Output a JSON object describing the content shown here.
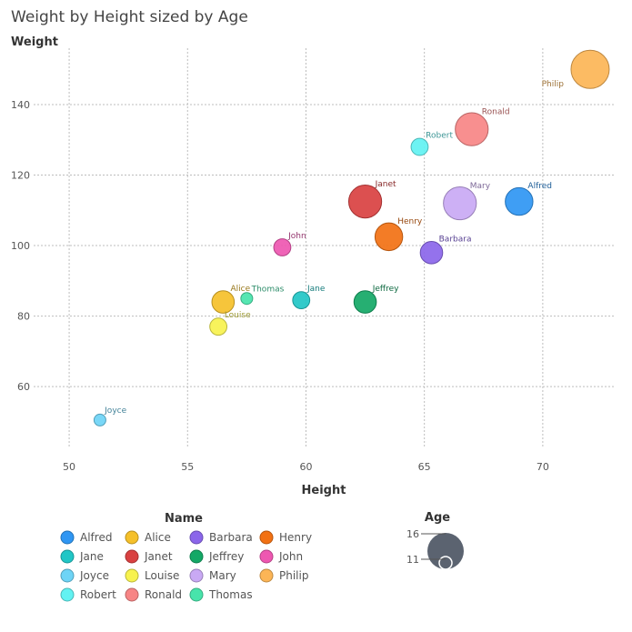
{
  "chart_data": {
    "type": "scatter",
    "title": "Weight by Height sized by Age",
    "xlabel": "Height",
    "ylabel": "Weight",
    "xlim": [
      48.5,
      73
    ],
    "ylim": [
      43,
      156
    ],
    "xticks": [
      50,
      55,
      60,
      65,
      70
    ],
    "yticks": [
      60,
      80,
      100,
      120,
      140
    ],
    "grid": true,
    "size_var": "Age",
    "legend_title": "Name",
    "size_legend": {
      "title": "Age",
      "values": [
        16,
        11
      ]
    },
    "series": [
      {
        "name": "Alfred",
        "color": "#2f96f3",
        "height": 69.0,
        "weight": 112.5,
        "age": 14
      },
      {
        "name": "Alice",
        "color": "#f5c02a",
        "height": 56.5,
        "weight": 84.0,
        "age": 13
      },
      {
        "name": "Barbara",
        "color": "#8b66ea",
        "height": 65.3,
        "weight": 98.0,
        "age": 13
      },
      {
        "name": "Henry",
        "color": "#f27113",
        "height": 63.5,
        "weight": 102.5,
        "age": 14
      },
      {
        "name": "Jane",
        "color": "#21c6c6",
        "height": 59.8,
        "weight": 84.5,
        "age": 12
      },
      {
        "name": "Janet",
        "color": "#d94141",
        "height": 62.5,
        "weight": 112.5,
        "age": 15
      },
      {
        "name": "Jeffrey",
        "color": "#14a866",
        "height": 62.5,
        "weight": 84.0,
        "age": 13
      },
      {
        "name": "John",
        "color": "#ee57b1",
        "height": 59.0,
        "weight": 99.5,
        "age": 12
      },
      {
        "name": "Joyce",
        "color": "#6ed4f6",
        "height": 51.3,
        "weight": 50.5,
        "age": 11
      },
      {
        "name": "Louise",
        "color": "#f7f24e",
        "height": 56.3,
        "weight": 77.0,
        "age": 12
      },
      {
        "name": "Mary",
        "color": "#c9a9f4",
        "height": 66.5,
        "weight": 112.0,
        "age": 15
      },
      {
        "name": "Philip",
        "color": "#fcb556",
        "height": 72.0,
        "weight": 150.0,
        "age": 16
      },
      {
        "name": "Robert",
        "color": "#62f2f2",
        "height": 64.8,
        "weight": 128.0,
        "age": 12
      },
      {
        "name": "Ronald",
        "color": "#f78585",
        "height": 67.0,
        "weight": 133.0,
        "age": 15
      },
      {
        "name": "Thomas",
        "color": "#48e4ab",
        "height": 57.5,
        "weight": 85.0,
        "age": 11
      }
    ],
    "legend_order": [
      "Alfred",
      "Alice",
      "Barbara",
      "Henry",
      "Jane",
      "Janet",
      "Jeffrey",
      "John",
      "Joyce",
      "Louise",
      "Mary",
      "Philip",
      "Robert",
      "Ronald",
      "Thomas"
    ]
  }
}
